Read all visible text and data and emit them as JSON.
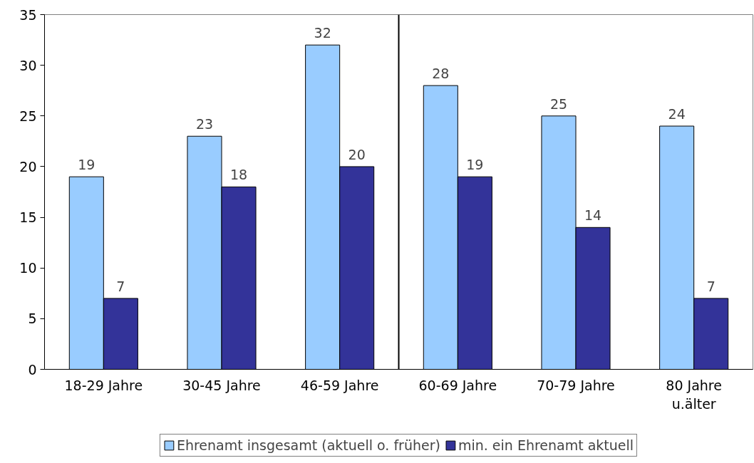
{
  "chart_data": {
    "type": "bar",
    "categories": [
      "18-29 Jahre",
      "30-45 Jahre",
      "46-59 Jahre",
      "60-69 Jahre",
      "70-79 Jahre",
      "80 Jahre\nu.älter"
    ],
    "series": [
      {
        "name": "Ehrenamt insgesamt (aktuell o. früher)",
        "color": "#99ccff",
        "values": [
          19,
          23,
          32,
          28,
          25,
          24
        ]
      },
      {
        "name": "min. ein Ehrenamt aktuell",
        "color": "#333399",
        "values": [
          7,
          18,
          20,
          19,
          14,
          7
        ]
      }
    ],
    "ylim": [
      0,
      35
    ],
    "yticks": [
      0,
      5,
      10,
      15,
      20,
      25,
      30,
      35
    ],
    "grid": false,
    "data_labels": true,
    "legend": "bottom"
  }
}
